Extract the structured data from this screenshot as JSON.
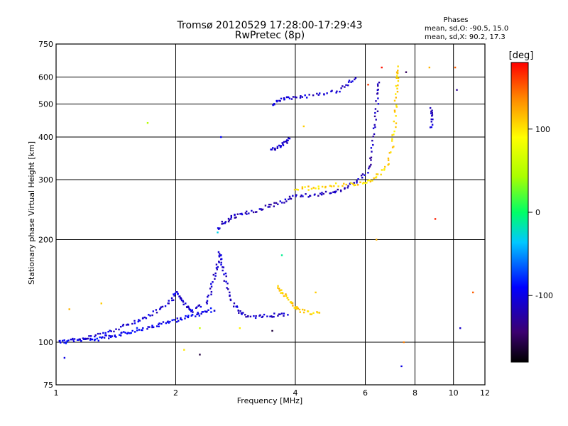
{
  "chart_data": {
    "type": "scatter",
    "title": "Tromsø 20120529 17:28:00-17:29:43",
    "subtitle": "RwPretec (8p)",
    "xlabel": "Frequency [MHz]",
    "ylabel": "Stationary phase Virtual Height [km]",
    "x_scale": "log",
    "y_scale": "log",
    "xlim": [
      1,
      12
    ],
    "ylim": [
      75,
      750
    ],
    "grid": true,
    "x_ticks": [
      1,
      2,
      4,
      6,
      8,
      10,
      12
    ],
    "y_ticks": [
      75,
      100,
      200,
      300,
      400,
      500,
      600,
      750
    ],
    "phases_title": "Phases",
    "phases_o": "mean, sd,O: -90.5, 15.0",
    "phases_x": "mean, sd,X:  90.2, 17.3",
    "colorbar": {
      "label": "[deg]",
      "range": [
        -180,
        180
      ],
      "ticks": [
        100,
        0,
        -100
      ]
    },
    "traces": [
      {
        "phase": -95,
        "points": [
          [
            1.02,
            101
          ],
          [
            1.06,
            100
          ],
          [
            1.1,
            102
          ],
          [
            1.15,
            101
          ],
          [
            1.2,
            103
          ],
          [
            1.26,
            101
          ],
          [
            1.32,
            104
          ],
          [
            1.38,
            103
          ],
          [
            1.45,
            105
          ],
          [
            1.52,
            107
          ],
          [
            1.6,
            109
          ],
          [
            1.7,
            110
          ],
          [
            1.8,
            112
          ],
          [
            1.9,
            114
          ],
          [
            2.0,
            116
          ],
          [
            2.1,
            118
          ],
          [
            2.2,
            120
          ],
          [
            2.3,
            121
          ],
          [
            2.4,
            123
          ],
          [
            2.5,
            125
          ]
        ]
      },
      {
        "phase": -105,
        "points": [
          [
            1.15,
            102
          ],
          [
            1.25,
            104
          ],
          [
            1.35,
            107
          ],
          [
            1.45,
            110
          ],
          [
            1.55,
            114
          ],
          [
            1.65,
            117
          ],
          [
            1.75,
            121
          ],
          [
            1.85,
            126
          ],
          [
            1.95,
            133
          ],
          [
            2.0,
            140
          ],
          [
            2.05,
            136
          ],
          [
            2.1,
            130
          ],
          [
            2.15,
            126
          ],
          [
            2.2,
            124
          ],
          [
            2.3,
            128
          ]
        ]
      },
      {
        "phase": -110,
        "points": [
          [
            2.4,
            130
          ],
          [
            2.45,
            140
          ],
          [
            2.5,
            155
          ],
          [
            2.55,
            170
          ],
          [
            2.58,
            183
          ],
          [
            2.62,
            170
          ],
          [
            2.66,
            155
          ],
          [
            2.72,
            140
          ],
          [
            2.8,
            128
          ],
          [
            2.9,
            123
          ],
          [
            3.0,
            120
          ],
          [
            3.2,
            119
          ],
          [
            3.4,
            120
          ],
          [
            3.6,
            120
          ],
          [
            3.8,
            120
          ]
        ]
      },
      {
        "phase": -115,
        "points": [
          [
            2.55,
            215
          ],
          [
            2.65,
            225
          ],
          [
            2.75,
            232
          ],
          [
            2.85,
            235
          ],
          [
            3.0,
            240
          ],
          [
            3.2,
            243
          ],
          [
            3.4,
            250
          ],
          [
            3.6,
            255
          ],
          [
            3.8,
            262
          ],
          [
            4.0,
            268
          ],
          [
            4.3,
            270
          ],
          [
            4.6,
            272
          ],
          [
            4.9,
            275
          ],
          [
            5.2,
            280
          ],
          [
            5.5,
            288
          ],
          [
            5.8,
            298
          ],
          [
            6.1,
            320
          ],
          [
            6.2,
            350
          ],
          [
            6.3,
            410
          ],
          [
            6.4,
            470
          ],
          [
            6.45,
            530
          ],
          [
            6.5,
            580
          ]
        ]
      },
      {
        "phase": 110,
        "points": [
          [
            3.6,
            145
          ],
          [
            3.7,
            140
          ],
          [
            3.8,
            136
          ],
          [
            3.9,
            131
          ],
          [
            4.0,
            127
          ],
          [
            4.1,
            124
          ],
          [
            4.3,
            122
          ],
          [
            4.6,
            121
          ]
        ]
      },
      {
        "phase": 105,
        "points": [
          [
            4.0,
            280
          ],
          [
            4.3,
            283
          ],
          [
            4.6,
            286
          ],
          [
            5.0,
            289
          ],
          [
            5.5,
            290
          ],
          [
            5.9,
            292
          ],
          [
            6.2,
            298
          ],
          [
            6.5,
            310
          ],
          [
            6.8,
            330
          ],
          [
            7.0,
            370
          ],
          [
            7.1,
            420
          ],
          [
            7.15,
            480
          ],
          [
            7.2,
            540
          ],
          [
            7.22,
            600
          ],
          [
            7.23,
            640
          ]
        ]
      },
      {
        "phase": -108,
        "points": [
          [
            3.5,
            365
          ],
          [
            3.6,
            372
          ],
          [
            3.7,
            378
          ],
          [
            3.8,
            385
          ],
          [
            3.85,
            395
          ]
        ]
      },
      {
        "phase": -108,
        "points": [
          [
            3.5,
            500
          ],
          [
            3.65,
            510
          ],
          [
            3.8,
            518
          ],
          [
            4.0,
            525
          ],
          [
            4.3,
            528
          ],
          [
            4.7,
            532
          ],
          [
            5.1,
            545
          ],
          [
            5.4,
            570
          ],
          [
            5.7,
            600
          ]
        ]
      },
      {
        "phase": -112,
        "points": [
          [
            8.8,
            425
          ],
          [
            8.8,
            460
          ],
          [
            8.8,
            485
          ]
        ]
      }
    ],
    "stray_points": [
      [
        1.05,
        90,
        -100
      ],
      [
        1.08,
        125,
        120
      ],
      [
        1.3,
        130,
        110
      ],
      [
        1.7,
        440,
        50
      ],
      [
        2.1,
        95,
        100
      ],
      [
        2.3,
        92,
        -160
      ],
      [
        2.6,
        400,
        -90
      ],
      [
        2.55,
        210,
        -30
      ],
      [
        2.3,
        110,
        60
      ],
      [
        2.9,
        110,
        95
      ],
      [
        3.5,
        108,
        -160
      ],
      [
        3.7,
        180,
        -10
      ],
      [
        4.2,
        430,
        110
      ],
      [
        4.5,
        140,
        110
      ],
      [
        6.1,
        570,
        160
      ],
      [
        6.4,
        200,
        120
      ],
      [
        6.6,
        640,
        175
      ],
      [
        7.4,
        85,
        -100
      ],
      [
        7.5,
        100,
        140
      ],
      [
        7.6,
        620,
        -150
      ],
      [
        8.7,
        640,
        120
      ],
      [
        9.0,
        230,
        170
      ],
      [
        10.1,
        640,
        150
      ],
      [
        10.2,
        550,
        -130
      ],
      [
        10.4,
        110,
        -110
      ],
      [
        11.2,
        140,
        150
      ]
    ]
  }
}
